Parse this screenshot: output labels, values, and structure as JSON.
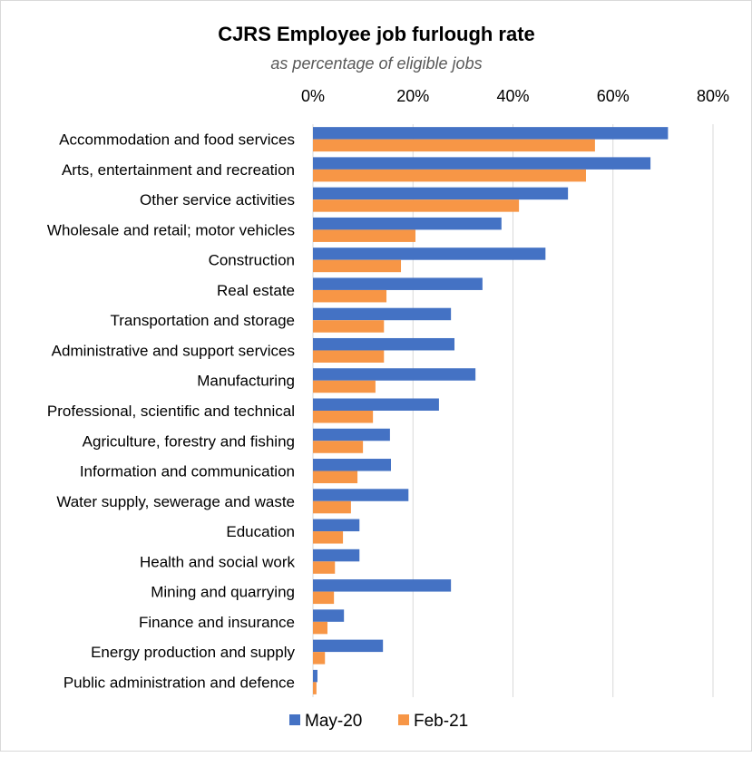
{
  "chart_data": {
    "type": "bar",
    "orientation": "horizontal",
    "title": "CJRS Employee job furlough rate",
    "subtitle": "as percentage of eligible jobs",
    "xlim": [
      0,
      80
    ],
    "x_ticks": [
      "0%",
      "20%",
      "40%",
      "60%",
      "80%"
    ],
    "x_tick_values": [
      0,
      20,
      40,
      60,
      80
    ],
    "x_axis_position": "top",
    "grid": true,
    "legend_position": "bottom",
    "categories": [
      "Accommodation and food services",
      "Arts, entertainment and recreation",
      "Other service activities",
      "Wholesale and retail; motor vehicles",
      "Construction",
      "Real estate",
      "Transportation and storage",
      "Administrative and support services",
      "Manufacturing",
      "Professional, scientific and technical",
      "Agriculture, forestry and fishing",
      "Information and communication",
      "Water supply, sewerage and waste",
      "Education",
      "Health and social work",
      "Mining and quarrying",
      "Finance and insurance",
      "Energy production and supply",
      "Public administration and defence"
    ],
    "series": [
      {
        "name": "May-20",
        "color": "#4472C4",
        "values": [
          71.0,
          67.5,
          51.0,
          37.7,
          46.5,
          33.9,
          27.6,
          28.3,
          32.5,
          25.2,
          15.4,
          15.6,
          19.1,
          9.3,
          9.3,
          27.6,
          6.2,
          14.0,
          0.9
        ]
      },
      {
        "name": "Feb-21",
        "color": "#F79646",
        "values": [
          56.4,
          54.6,
          41.2,
          20.5,
          17.6,
          14.7,
          14.2,
          14.2,
          12.5,
          12.0,
          10.0,
          8.9,
          7.6,
          6.0,
          4.4,
          4.2,
          2.9,
          2.4,
          0.7
        ]
      }
    ]
  }
}
